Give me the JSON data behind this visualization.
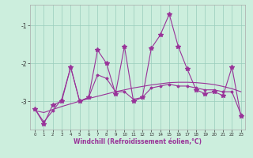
{
  "xlabel": "Windchill (Refroidissement éolien,°C)",
  "hours": [
    0,
    1,
    2,
    3,
    4,
    5,
    6,
    7,
    8,
    9,
    10,
    11,
    12,
    13,
    14,
    15,
    16,
    17,
    18,
    19,
    20,
    21,
    22,
    23
  ],
  "line1": [
    -3.2,
    -3.6,
    -3.1,
    -3.0,
    -2.1,
    -3.0,
    -2.9,
    -1.65,
    -2.0,
    -2.8,
    -1.55,
    -3.0,
    -2.9,
    -1.6,
    -1.25,
    -0.7,
    -1.55,
    -2.15,
    -2.7,
    -2.8,
    -2.75,
    -2.85,
    -2.1,
    -3.4
  ],
  "line2": [
    -3.2,
    -3.55,
    -3.25,
    -2.95,
    -2.1,
    -3.0,
    -2.9,
    -2.3,
    -2.4,
    -2.75,
    -2.75,
    -2.95,
    -2.9,
    -2.65,
    -2.6,
    -2.55,
    -2.6,
    -2.6,
    -2.65,
    -2.7,
    -2.7,
    -2.75,
    -2.75,
    -3.35
  ],
  "line3": [
    -3.25,
    -3.3,
    -3.22,
    -3.14,
    -3.07,
    -3.0,
    -2.93,
    -2.87,
    -2.81,
    -2.75,
    -2.7,
    -2.65,
    -2.61,
    -2.57,
    -2.54,
    -2.51,
    -2.5,
    -2.5,
    -2.51,
    -2.53,
    -2.56,
    -2.61,
    -2.67,
    -2.75
  ],
  "color": "#993399",
  "bg_color": "#cceedd",
  "grid_color": "#99ccbb",
  "ylim": [
    -3.75,
    -0.45
  ],
  "yticks": [
    -3,
    -2,
    -1
  ],
  "xlim": [
    -0.5,
    23.5
  ]
}
